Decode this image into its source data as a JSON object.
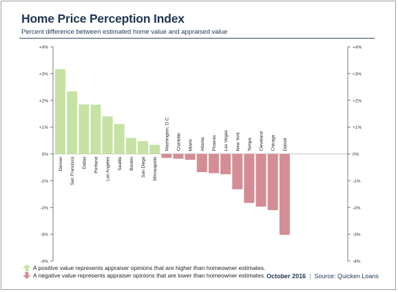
{
  "header": {
    "title": "Home Price Perception Index",
    "subtitle": "Percent difference between estimated home value and appraised value"
  },
  "chart_data": {
    "type": "bar",
    "title": "Home Price Perception Index",
    "subtitle": "Percent difference between estimated home value and appraised value",
    "xlabel": "",
    "ylabel": "",
    "ylim": [
      -4,
      4
    ],
    "yticks": [
      4,
      3,
      2,
      1,
      0,
      -1,
      -2,
      -3,
      -4
    ],
    "ytick_labels": [
      "+4%",
      "+3%",
      "+2%",
      "+1%",
      "0%",
      "-1%",
      "-2%",
      "-3%",
      "-4%"
    ],
    "grid": false,
    "categories": [
      "Denver",
      "San Francisco",
      "Dallas",
      "Portland",
      "Los Angeles",
      "Seattle",
      "Boston",
      "San Diego",
      "Minneapolis",
      "Washington, D.C.",
      "Charlotte",
      "Miami",
      "Atlanta",
      "Phoenix",
      "Las Vegas",
      "New York",
      "Tampa",
      "Cleveland",
      "Chicago",
      "Detroit"
    ],
    "values": [
      3.17,
      2.34,
      1.85,
      1.84,
      1.4,
      1.12,
      0.6,
      0.48,
      0.34,
      -0.15,
      -0.18,
      -0.22,
      -0.68,
      -0.72,
      -0.76,
      -1.32,
      -1.83,
      -1.97,
      -2.1,
      -3.02
    ],
    "colors": {
      "positive": "#c6e2a5",
      "negative": "#d48d95"
    }
  },
  "legend": {
    "positive": "A positive value represents appraiser opinions that are higher than homeowner estimates.",
    "negative": "A negative value represents appraiser opinions that are lower than homeowner estimates."
  },
  "footer": {
    "date": "October 2016",
    "source": "Source: Quicken Loans"
  }
}
